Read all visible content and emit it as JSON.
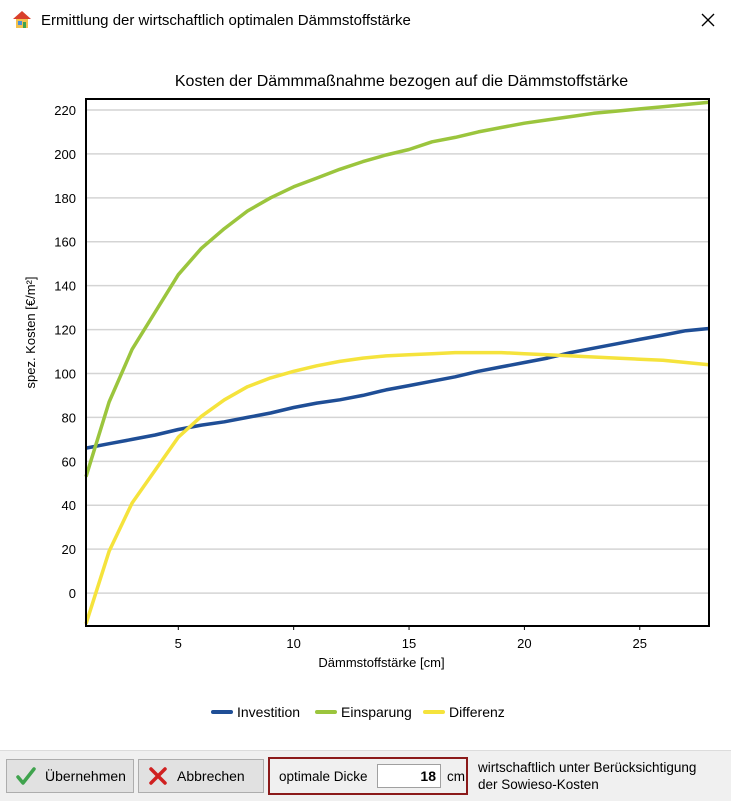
{
  "window": {
    "title": "Ermittlung der wirtschaftlich optimalen Dämmstoffstärke",
    "app_icon": "house-icon",
    "close_icon": "close-icon"
  },
  "chart_data": {
    "type": "line",
    "title": "Kosten der Dämmmaßnahme bezogen auf die Dämmstoffstärke",
    "xlabel": "Dämmstoffstärke [cm]",
    "ylabel": "spez. Kosten [€/m²]",
    "xlim": [
      1,
      28
    ],
    "ylim": [
      -15,
      225
    ],
    "x_ticks": [
      5,
      10,
      15,
      20,
      25
    ],
    "y_ticks": [
      0,
      20,
      40,
      60,
      80,
      100,
      120,
      140,
      160,
      180,
      200,
      220
    ],
    "grid": "horizontal",
    "legend_position": "bottom",
    "x": [
      1,
      2,
      3,
      4,
      5,
      6,
      7,
      8,
      9,
      10,
      11,
      12,
      13,
      14,
      15,
      16,
      17,
      18,
      19,
      20,
      21,
      22,
      23,
      24,
      25,
      26,
      27,
      28
    ],
    "series": [
      {
        "name": "Investition",
        "color": "#1f4e96",
        "values": [
          66,
          68,
          70,
          72,
          74.5,
          76.5,
          78,
          80,
          82,
          84.5,
          86.5,
          88,
          90,
          92.5,
          94.5,
          96.5,
          98.5,
          101,
          103,
          105,
          107,
          109.5,
          111.5,
          113.5,
          115.5,
          117.5,
          119.5,
          120.5
        ]
      },
      {
        "name": "Einsparung",
        "color": "#9bc53d",
        "values": [
          53,
          87,
          111,
          128,
          145,
          157,
          166,
          174,
          180,
          185,
          189,
          193,
          196.5,
          199.5,
          202,
          205.5,
          207.5,
          210,
          212,
          214,
          215.5,
          217,
          218.5,
          219.5,
          220.5,
          221.5,
          222.5,
          223.5
        ]
      },
      {
        "name": "Differenz",
        "color": "#f5e33c",
        "values": [
          -14,
          19,
          41,
          56,
          71,
          80.5,
          88,
          94,
          98,
          101,
          103.5,
          105.5,
          107,
          108,
          108.5,
          109,
          109.5,
          109.5,
          109.5,
          109,
          108.5,
          108,
          107.5,
          107,
          106.5,
          106,
          105,
          104
        ]
      }
    ]
  },
  "footer": {
    "ok_label": "Übernehmen",
    "ok_icon": "checkmark-icon",
    "cancel_label": "Abbrechen",
    "cancel_icon": "cross-icon",
    "optimal_label": "optimale Dicke",
    "optimal_value": "18",
    "optimal_unit": "cm",
    "note_line1": "wirtschaftlich unter Berücksichtigung",
    "note_line2": "der Sowieso-Kosten",
    "highlight_color": "#8b1a1a"
  }
}
